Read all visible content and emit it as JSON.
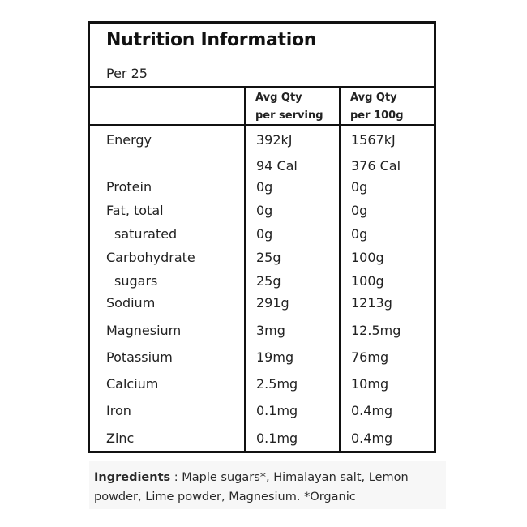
{
  "panel": {
    "title": "Nutrition Information",
    "subtitle": "Per 25"
  },
  "columns": {
    "serving_line1": "Avg Qty",
    "serving_line2": "per serving",
    "per100_line1": "Avg Qty",
    "per100_line2": "per 100g"
  },
  "rows": [
    {
      "label": "Energy",
      "serving": "392kJ",
      "per100": "1567kJ",
      "indent": false
    },
    {
      "label": "",
      "serving": "94 Cal",
      "per100": "376 Cal",
      "indent": false
    },
    {
      "label": "Protein",
      "serving": "0g",
      "per100": "0g",
      "indent": false
    },
    {
      "label": "Fat, total",
      "serving": "0g",
      "per100": "0g",
      "indent": false
    },
    {
      "label": "saturated",
      "serving": "0g",
      "per100": "0g",
      "indent": true
    },
    {
      "label": "Carbohydrate",
      "serving": "25g",
      "per100": "100g",
      "indent": false
    },
    {
      "label": "sugars",
      "serving": "25g",
      "per100": "100g",
      "indent": true
    },
    {
      "label": "Sodium",
      "serving": "291g",
      "per100": "1213g",
      "indent": false
    },
    {
      "label": "Magnesium",
      "serving": "3mg",
      "per100": "12.5mg",
      "indent": false
    },
    {
      "label": "Potassium",
      "serving": "19mg",
      "per100": "76mg",
      "indent": false
    },
    {
      "label": "Calcium",
      "serving": "2.5mg",
      "per100": "10mg",
      "indent": false
    },
    {
      "label": "Iron",
      "serving": "0.1mg",
      "per100": "0.4mg",
      "indent": false
    },
    {
      "label": "Zinc",
      "serving": "0.1mg",
      "per100": "0.4mg",
      "indent": false
    }
  ],
  "ingredients": {
    "label": "Ingredients",
    "separator": " : ",
    "text": "Maple sugars*, Himalayan salt, Lemon powder, Lime powder, Magnesium. *Organic"
  }
}
